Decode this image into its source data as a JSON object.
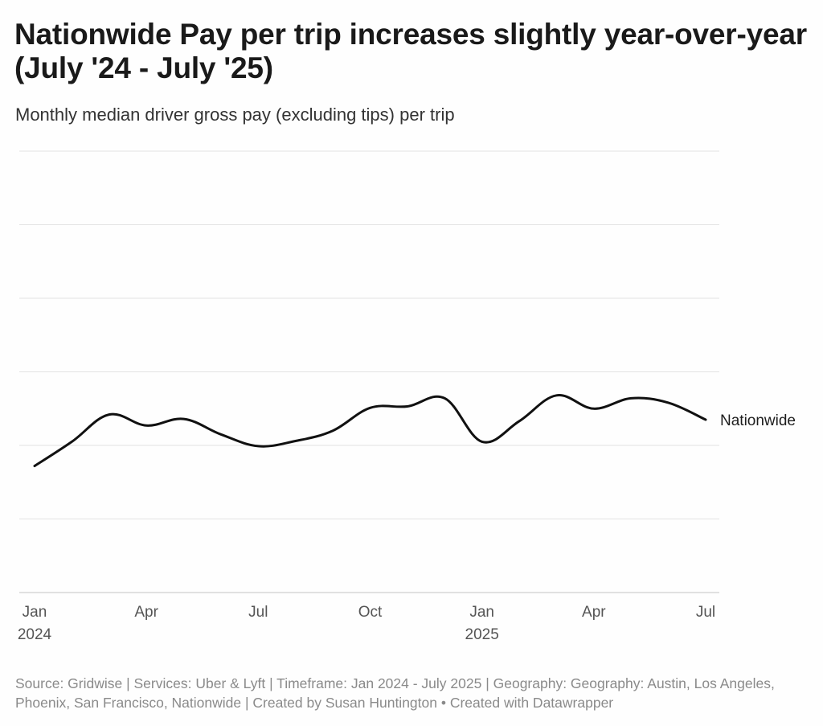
{
  "header": {
    "title": "Nationwide Pay per trip increases slightly year-over-year (July '24 - July '25)",
    "subtitle": "Monthly median driver gross pay (excluding tips) per trip"
  },
  "footer": {
    "source": "Source: Gridwise | Services: Uber & Lyft | Timeframe: Jan 2024 - July 2025 | Geography: Geography: Austin, Los Angeles, Phoenix, San Francisco, Nationwide | Created by Susan Huntington • Created with Datawrapper"
  },
  "colors": {
    "line": "#111111",
    "grid": "#e3e3e3",
    "tick_text": "#555555",
    "footer_text": "#8a8a8a"
  },
  "chart_data": {
    "type": "line",
    "title": "Nationwide Pay per trip increases slightly year-over-year (July '24 - July '25)",
    "subtitle": "Monthly median driver gross pay (excluding tips) per trip",
    "xlabel": "",
    "ylabel": "",
    "x_range": [
      0,
      18
    ],
    "ylim": [
      0,
      6
    ],
    "grid": true,
    "y_gridlines": [
      0,
      1,
      2,
      3,
      4,
      5,
      6
    ],
    "x_ticks": [
      {
        "x": 0,
        "lines": [
          "Jan",
          "2024"
        ]
      },
      {
        "x": 3,
        "lines": [
          "Apr"
        ]
      },
      {
        "x": 6,
        "lines": [
          "Jul"
        ]
      },
      {
        "x": 9,
        "lines": [
          "Oct"
        ]
      },
      {
        "x": 12,
        "lines": [
          "Jan",
          "2025"
        ]
      },
      {
        "x": 15,
        "lines": [
          "Apr"
        ]
      },
      {
        "x": 18,
        "lines": [
          "Jul"
        ]
      }
    ],
    "series": [
      {
        "name": "Nationwide",
        "x": [
          0,
          1,
          2,
          3,
          4,
          5,
          6,
          7,
          8,
          9,
          10,
          11,
          12,
          13,
          14,
          15,
          16,
          17,
          18
        ],
        "values": [
          1.72,
          2.05,
          2.42,
          2.27,
          2.36,
          2.15,
          1.99,
          2.06,
          2.2,
          2.51,
          2.53,
          2.64,
          2.05,
          2.33,
          2.68,
          2.5,
          2.64,
          2.58,
          2.35
        ]
      }
    ]
  }
}
